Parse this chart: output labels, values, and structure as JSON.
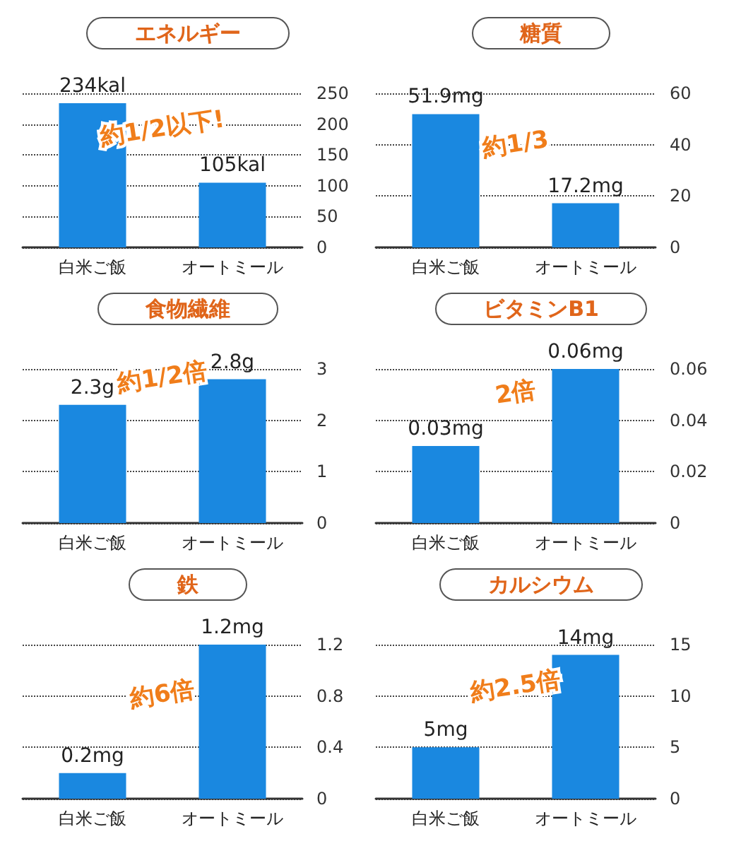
{
  "chart_data": [
    {
      "type": "bar",
      "title": "エネルギー",
      "categories": [
        "白米ご飯",
        "オートミール"
      ],
      "values": [
        234,
        105
      ],
      "value_labels": [
        "234kal",
        "105kal"
      ],
      "color": "#1a88e0",
      "ylim": [
        0,
        250
      ],
      "yticks": [
        0,
        50,
        100,
        150,
        200,
        250
      ],
      "grid": "y",
      "annotations": [
        "約1/2以下!"
      ]
    },
    {
      "type": "bar",
      "title": "糖質",
      "categories": [
        "白米ご飯",
        "オートミール"
      ],
      "values": [
        51.9,
        17.2
      ],
      "value_labels": [
        "51.9mg",
        "17.2mg"
      ],
      "color": "#1a88e0",
      "ylim": [
        0,
        60
      ],
      "yticks": [
        0,
        20,
        40,
        60
      ],
      "grid": "y",
      "annotations": [
        "約1/3"
      ]
    },
    {
      "type": "bar",
      "title": "食物繊維",
      "categories": [
        "白米ご飯",
        "オートミール"
      ],
      "values": [
        2.3,
        2.8
      ],
      "value_labels": [
        "2.3g",
        "2.8g"
      ],
      "color": "#1a88e0",
      "ylim": [
        0,
        3
      ],
      "yticks": [
        0,
        1,
        2,
        3
      ],
      "grid": "y",
      "annotations": [
        "約1/2倍"
      ]
    },
    {
      "type": "bar",
      "title": "ビタミンB1",
      "categories": [
        "白米ご飯",
        "オートミール"
      ],
      "values": [
        0.03,
        0.06
      ],
      "value_labels": [
        "0.03mg",
        "0.06mg"
      ],
      "color": "#1a88e0",
      "ylim": [
        0,
        0.06
      ],
      "yticks": [
        0,
        0.02,
        0.04,
        0.06
      ],
      "grid": "y",
      "annotations": [
        "2倍"
      ]
    },
    {
      "type": "bar",
      "title": "鉄",
      "categories": [
        "白米ご飯",
        "オートミール"
      ],
      "values": [
        0.2,
        1.2
      ],
      "value_labels": [
        "0.2mg",
        "1.2mg"
      ],
      "color": "#1a88e0",
      "ylim": [
        0,
        1.2
      ],
      "yticks": [
        0,
        0.4,
        0.8,
        1.2
      ],
      "grid": "y",
      "annotations": [
        "約6倍"
      ]
    },
    {
      "type": "bar",
      "title": "カルシウム",
      "categories": [
        "白米ご飯",
        "オートミール"
      ],
      "values": [
        5,
        14
      ],
      "value_labels": [
        "5mg",
        "14mg"
      ],
      "color": "#1a88e0",
      "ylim": [
        0,
        15
      ],
      "yticks": [
        0,
        5,
        10,
        15
      ],
      "grid": "y",
      "annotations": [
        "約2.5倍"
      ]
    }
  ]
}
